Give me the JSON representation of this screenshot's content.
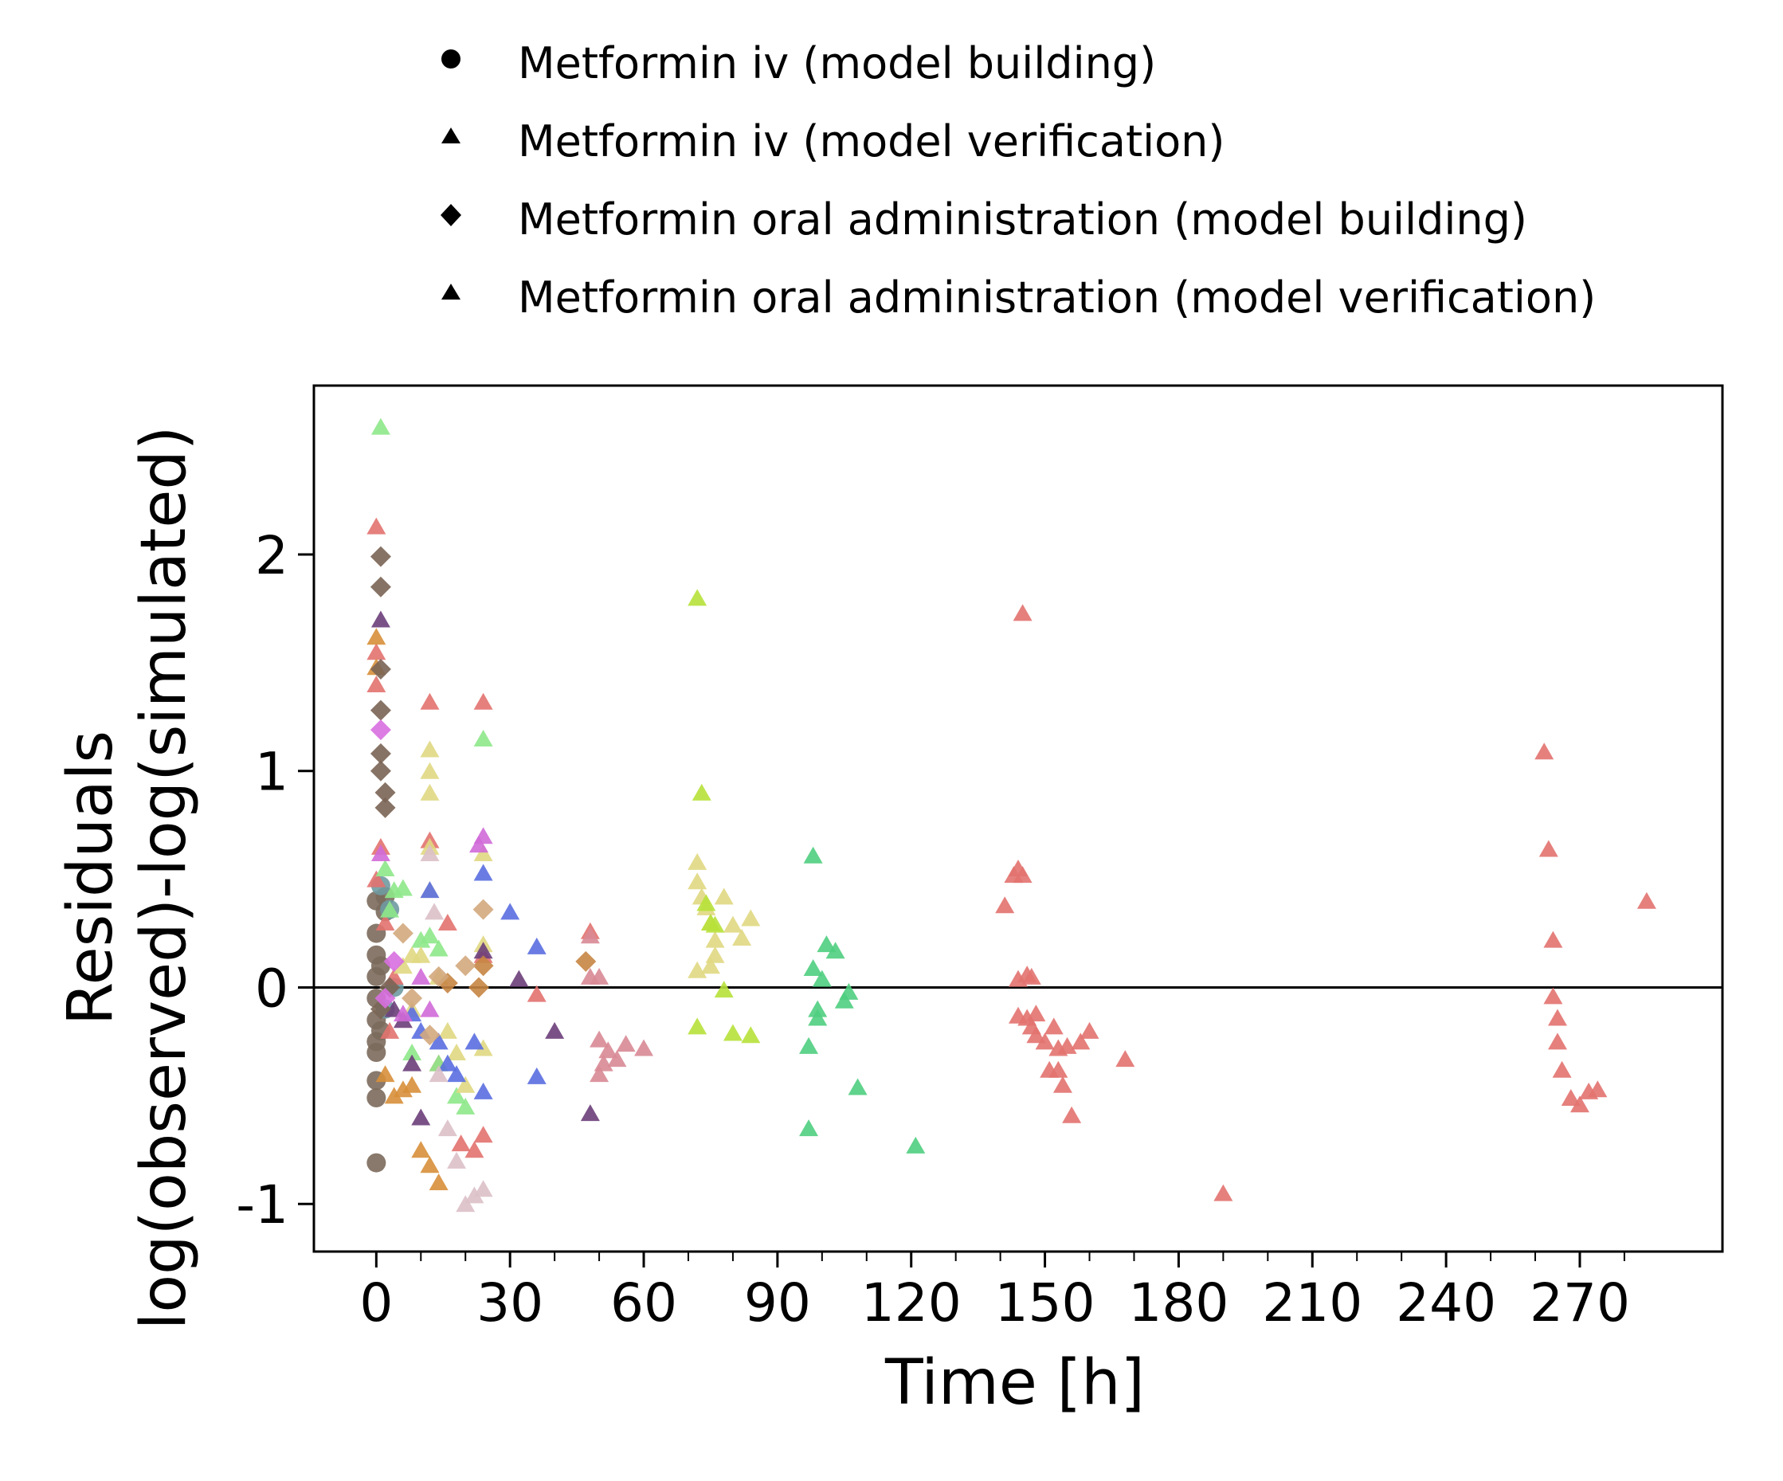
{
  "chart_data": {
    "type": "scatter",
    "xlabel": "Time [h]",
    "ylabel": [
      "Residuals",
      "log(observed)-log(simulated)"
    ],
    "xlim": [
      -14,
      302
    ],
    "ylim": [
      -1.22,
      2.78
    ],
    "x_ticks": [
      0,
      30,
      60,
      90,
      120,
      150,
      180,
      210,
      240,
      270
    ],
    "x_tick_labels": [
      "0",
      "30",
      "60",
      "90",
      "120",
      "150",
      "180",
      "210",
      "240",
      "270"
    ],
    "y_ticks": [
      -1,
      0,
      1,
      2
    ],
    "y_tick_labels": [
      "-1",
      "0",
      "1",
      "2"
    ],
    "reference_line_y": 0,
    "legend": {
      "placement": "top",
      "entries": [
        {
          "label": "Metformin iv (model building)",
          "shape": "circle"
        },
        {
          "label": "Metformin iv (model verification)",
          "shape": "triangle"
        },
        {
          "label": "Metformin oral administration (model building)",
          "shape": "diamond"
        },
        {
          "label": "Metformin oral administration (model verification)",
          "shape": "triangle"
        }
      ]
    },
    "series": [
      {
        "shape": "circle",
        "color": "#7b6a5c",
        "points": [
          [
            0,
            -0.81
          ],
          [
            0,
            -0.51
          ],
          [
            0,
            -0.43
          ],
          [
            0,
            -0.3
          ],
          [
            0,
            -0.25
          ],
          [
            0,
            -0.15
          ],
          [
            0,
            -0.05
          ],
          [
            0,
            0.05
          ],
          [
            0,
            0.15
          ],
          [
            0,
            0.25
          ],
          [
            0,
            0.4
          ],
          [
            1,
            -0.2
          ],
          [
            1,
            0.1
          ],
          [
            2,
            0.35
          ],
          [
            2,
            0.42
          ]
        ]
      },
      {
        "shape": "circle",
        "color": "#6f9aa1",
        "points": [
          [
            1,
            0.47
          ],
          [
            3,
            0.36
          ],
          [
            2,
            -0.1
          ],
          [
            4,
            0.0
          ]
        ]
      },
      {
        "shape": "triangle",
        "color": "#e2726f",
        "points": [
          [
            0,
            2.13
          ],
          [
            0,
            1.55
          ],
          [
            0,
            1.4
          ],
          [
            1,
            0.65
          ],
          [
            0,
            0.5
          ],
          [
            2,
            0.3
          ],
          [
            4,
            0.05
          ],
          [
            3,
            -0.2
          ],
          [
            12,
            1.32
          ],
          [
            12,
            0.68
          ],
          [
            16,
            0.3
          ],
          [
            24,
            1.32
          ],
          [
            24,
            0.15
          ],
          [
            19,
            -0.72
          ],
          [
            22,
            -0.75
          ],
          [
            24,
            -0.68
          ],
          [
            14,
            -0.35
          ],
          [
            36,
            -0.03
          ],
          [
            48,
            0.26
          ],
          [
            145,
            1.73
          ],
          [
            143,
            0.52
          ],
          [
            144,
            0.55
          ],
          [
            145,
            0.52
          ],
          [
            141,
            0.38
          ],
          [
            144,
            0.04
          ],
          [
            146,
            0.06
          ],
          [
            147,
            0.05
          ],
          [
            144,
            -0.13
          ],
          [
            146,
            -0.14
          ],
          [
            148,
            -0.12
          ],
          [
            147,
            -0.18
          ],
          [
            148,
            -0.22
          ],
          [
            150,
            -0.25
          ],
          [
            152,
            -0.18
          ],
          [
            153,
            -0.28
          ],
          [
            155,
            -0.27
          ],
          [
            151,
            -0.38
          ],
          [
            153,
            -0.38
          ],
          [
            154,
            -0.45
          ],
          [
            156,
            -0.59
          ],
          [
            158,
            -0.25
          ],
          [
            160,
            -0.2
          ],
          [
            168,
            -0.33
          ],
          [
            190,
            -0.95
          ],
          [
            262,
            1.09
          ],
          [
            263,
            0.64
          ],
          [
            264,
            0.22
          ],
          [
            264,
            -0.04
          ],
          [
            265,
            -0.14
          ],
          [
            265,
            -0.25
          ],
          [
            266,
            -0.38
          ],
          [
            268,
            -0.51
          ],
          [
            270,
            -0.54
          ],
          [
            272,
            -0.48
          ],
          [
            274,
            -0.47
          ],
          [
            285,
            0.4
          ]
        ]
      },
      {
        "shape": "triangle",
        "color": "#8ee88a",
        "points": [
          [
            1,
            2.59
          ],
          [
            2,
            0.55
          ],
          [
            4,
            0.45
          ],
          [
            6,
            0.46
          ],
          [
            3,
            0.36
          ],
          [
            10,
            0.22
          ],
          [
            12,
            0.24
          ],
          [
            14,
            0.18
          ],
          [
            8,
            -0.3
          ],
          [
            14,
            -0.35
          ],
          [
            18,
            -0.5
          ],
          [
            24,
            1.15
          ],
          [
            20,
            -0.55
          ]
        ]
      },
      {
        "shape": "triangle",
        "color": "#e0d882",
        "points": [
          [
            12,
            1.1
          ],
          [
            12,
            1.0
          ],
          [
            12,
            0.9
          ],
          [
            12,
            0.65
          ],
          [
            12,
            0.45
          ],
          [
            10,
            0.15
          ],
          [
            14,
            0.05
          ],
          [
            6,
            0.1
          ],
          [
            8,
            -0.1
          ],
          [
            8,
            0.15
          ],
          [
            16,
            -0.2
          ],
          [
            18,
            -0.3
          ],
          [
            20,
            -0.45
          ],
          [
            24,
            0.62
          ],
          [
            24,
            0.2
          ],
          [
            24,
            -0.28
          ],
          [
            72,
            0.58
          ],
          [
            72,
            0.49
          ],
          [
            73,
            0.42
          ],
          [
            74,
            0.37
          ],
          [
            75,
            0.3
          ],
          [
            76,
            0.22
          ],
          [
            76,
            0.15
          ],
          [
            75,
            0.1
          ],
          [
            72,
            0.08
          ],
          [
            78,
            0.42
          ],
          [
            80,
            0.29
          ],
          [
            82,
            0.23
          ],
          [
            84,
            0.32
          ]
        ]
      },
      {
        "shape": "triangle",
        "color": "#b7e13a",
        "points": [
          [
            72,
            1.8
          ],
          [
            73,
            0.9
          ],
          [
            74,
            0.39
          ],
          [
            75,
            0.3
          ],
          [
            76,
            0.29
          ],
          [
            78,
            -0.01
          ],
          [
            72,
            -0.18
          ],
          [
            80,
            -0.21
          ],
          [
            84,
            -0.22
          ]
        ]
      },
      {
        "shape": "triangle",
        "color": "#4fce7f",
        "points": [
          [
            98,
            0.61
          ],
          [
            98,
            0.09
          ],
          [
            100,
            0.04
          ],
          [
            101,
            0.2
          ],
          [
            103,
            0.17
          ],
          [
            99,
            -0.1
          ],
          [
            99,
            -0.14
          ],
          [
            105,
            -0.06
          ],
          [
            106,
            -0.02
          ],
          [
            97,
            -0.27
          ],
          [
            108,
            -0.46
          ],
          [
            97,
            -0.65
          ],
          [
            121,
            -0.73
          ]
        ]
      },
      {
        "shape": "triangle",
        "color": "#5a6ee0",
        "points": [
          [
            12,
            0.45
          ],
          [
            8,
            -0.12
          ],
          [
            10,
            -0.2
          ],
          [
            14,
            -0.25
          ],
          [
            16,
            -0.35
          ],
          [
            18,
            -0.4
          ],
          [
            22,
            -0.25
          ],
          [
            24,
            -0.48
          ],
          [
            24,
            0.53
          ],
          [
            30,
            0.35
          ],
          [
            36,
            0.19
          ],
          [
            36,
            -0.41
          ]
        ]
      },
      {
        "shape": "triangle",
        "color": "#6b3e7a",
        "points": [
          [
            1,
            1.7
          ],
          [
            4,
            -0.1
          ],
          [
            6,
            -0.15
          ],
          [
            8,
            -0.35
          ],
          [
            10,
            -0.6
          ],
          [
            24,
            0.17
          ],
          [
            32,
            0.04
          ],
          [
            40,
            -0.2
          ],
          [
            48,
            -0.58
          ]
        ]
      },
      {
        "shape": "triangle",
        "color": "#d06ad8",
        "points": [
          [
            1,
            0.62
          ],
          [
            6,
            -0.12
          ],
          [
            10,
            0.05
          ],
          [
            12,
            -0.1
          ],
          [
            24,
            0.7
          ],
          [
            23,
            0.66
          ]
        ]
      },
      {
        "shape": "triangle",
        "color": "#dcc0c8",
        "points": [
          [
            12,
            0.62
          ],
          [
            13,
            0.35
          ],
          [
            14,
            -0.4
          ],
          [
            16,
            -0.65
          ],
          [
            18,
            -0.8
          ],
          [
            20,
            -1.0
          ],
          [
            22,
            -0.96
          ],
          [
            24,
            -0.93
          ]
        ]
      },
      {
        "shape": "triangle",
        "color": "#d88a95",
        "points": [
          [
            48,
            0.24
          ],
          [
            48,
            0.05
          ],
          [
            50,
            0.05
          ],
          [
            50,
            -0.24
          ],
          [
            50,
            -0.4
          ],
          [
            51,
            -0.35
          ],
          [
            52,
            -0.29
          ],
          [
            54,
            -0.33
          ],
          [
            56,
            -0.26
          ],
          [
            60,
            -0.28
          ]
        ]
      },
      {
        "shape": "triangle",
        "color": "#d78f3a",
        "points": [
          [
            2,
            -0.4
          ],
          [
            4,
            -0.5
          ],
          [
            6,
            -0.47
          ],
          [
            8,
            -0.45
          ],
          [
            10,
            -0.75
          ],
          [
            12,
            -0.82
          ],
          [
            14,
            -0.9
          ],
          [
            0,
            1.62
          ],
          [
            0,
            1.48
          ]
        ]
      },
      {
        "shape": "diamond",
        "color": "#7a6454",
        "points": [
          [
            1,
            1.99
          ],
          [
            1,
            1.85
          ],
          [
            1,
            1.47
          ],
          [
            1,
            1.28
          ],
          [
            1,
            1.08
          ],
          [
            1,
            1.0
          ],
          [
            2,
            0.9
          ],
          [
            2,
            0.83
          ],
          [
            1,
            -0.1
          ],
          [
            3,
            0.0
          ]
        ]
      },
      {
        "shape": "diamond",
        "color": "#d86fe0",
        "points": [
          [
            1,
            1.19
          ],
          [
            2,
            -0.05
          ],
          [
            4,
            0.12
          ]
        ]
      },
      {
        "shape": "diamond",
        "color": "#c68542",
        "points": [
          [
            47,
            0.12
          ],
          [
            24,
            0.1
          ],
          [
            23,
            0.0
          ],
          [
            16,
            0.02
          ]
        ]
      },
      {
        "shape": "diamond",
        "color": "#d3a97d",
        "points": [
          [
            24,
            0.36
          ],
          [
            20,
            0.1
          ],
          [
            14,
            0.05
          ],
          [
            12,
            -0.22
          ],
          [
            8,
            -0.05
          ],
          [
            6,
            0.25
          ]
        ]
      }
    ]
  }
}
